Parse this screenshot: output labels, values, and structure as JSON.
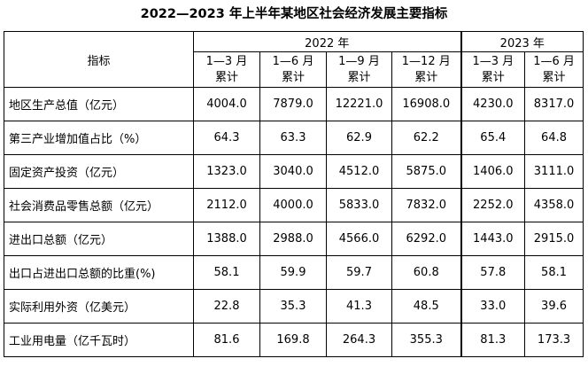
{
  "title": "2022—2023 年上半年某地区社会经济发展主要指标",
  "header": {
    "indicator_label": "指标",
    "years": [
      "2022 年",
      "2023 年"
    ],
    "periods": [
      {
        "line1": "1—3 月",
        "line2": "累计"
      },
      {
        "line1": "1—6 月",
        "line2": "累计"
      },
      {
        "line1": "1—9 月",
        "line2": "累计"
      },
      {
        "line1": "1—12 月",
        "line2": "累计"
      },
      {
        "line1": "1—3 月",
        "line2": "累计"
      },
      {
        "line1": "1—6 月",
        "line2": "累计"
      }
    ]
  },
  "rows": [
    {
      "label": "地区生产总值（亿元）",
      "values": [
        "4004.0",
        "7879.0",
        "12221.0",
        "16908.0",
        "4230.0",
        "8317.0"
      ]
    },
    {
      "label": "第三产业增加值占比（%）",
      "values": [
        "64.3",
        "63.3",
        "62.9",
        "62.2",
        "65.4",
        "64.8"
      ]
    },
    {
      "label": "固定资产投资（亿元）",
      "values": [
        "1323.0",
        "3040.0",
        "4512.0",
        "5875.0",
        "1406.0",
        "3111.0"
      ]
    },
    {
      "label": "社会消费品零售总额（亿元）",
      "values": [
        "2112.0",
        "4000.0",
        "5833.0",
        "7832.0",
        "2252.0",
        "4358.0"
      ]
    },
    {
      "label": "进出口总额（亿元）",
      "values": [
        "1388.0",
        "2988.0",
        "4566.0",
        "6292.0",
        "1443.0",
        "2915.0"
      ]
    },
    {
      "label": "出口占进出口总额的比重(%)",
      "values": [
        "58.1",
        "59.9",
        "59.7",
        "60.8",
        "57.8",
        "58.1"
      ]
    },
    {
      "label": "实际利用外资（亿美元）",
      "values": [
        "22.8",
        "35.3",
        "41.3",
        "48.5",
        "33.0",
        "39.6"
      ]
    },
    {
      "label": "工业用电量（亿千瓦时）",
      "values": [
        "81.6",
        "169.8",
        "264.3",
        "355.3",
        "81.3",
        "173.3"
      ]
    }
  ]
}
